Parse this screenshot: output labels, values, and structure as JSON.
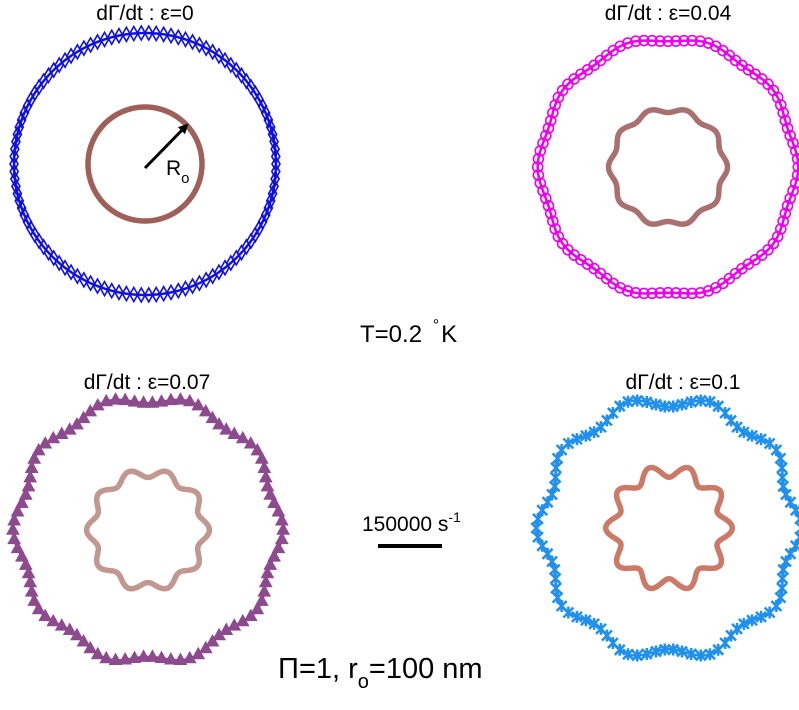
{
  "chart_data": [
    {
      "type": "polar-line",
      "title": "dΓ/dt : ε=0",
      "epsilon": 0,
      "undulations": 10,
      "outer": {
        "color": "#1010e6",
        "marker": "diamond"
      },
      "inner": {
        "color": "#a0605a"
      },
      "radius_label": {
        "main": "R",
        "sub": "o"
      }
    },
    {
      "type": "polar-line",
      "title": "dΓ/dt : ε=0.04",
      "epsilon": 0.04,
      "undulations": 10,
      "outer": {
        "color": "#ee00ee",
        "marker": "circle"
      },
      "inner": {
        "color": "#aa7070"
      }
    },
    {
      "type": "polar-line",
      "title": "dΓ/dt : ε=0.07",
      "epsilon": 0.07,
      "undulations": 10,
      "outer": {
        "color": "#8e4a8e",
        "marker": "triangle"
      },
      "inner": {
        "color": "#c09890"
      }
    },
    {
      "type": "polar-line",
      "title": "dΓ/dt : ε=0.1",
      "epsilon": 0.1,
      "undulations": 10,
      "outer": {
        "color": "#2090ee",
        "marker": "star"
      },
      "inner": {
        "color": "#cc7a68"
      }
    }
  ],
  "annotations": {
    "temperature": {
      "main": "T=0.2 ",
      "degree": "°",
      "unit": "K"
    },
    "scalebar": {
      "value": "150000 s",
      "exponent": "-1"
    },
    "params": {
      "part1": "Π=1, r",
      "sub": "o",
      "part2": "=100 nm"
    }
  }
}
